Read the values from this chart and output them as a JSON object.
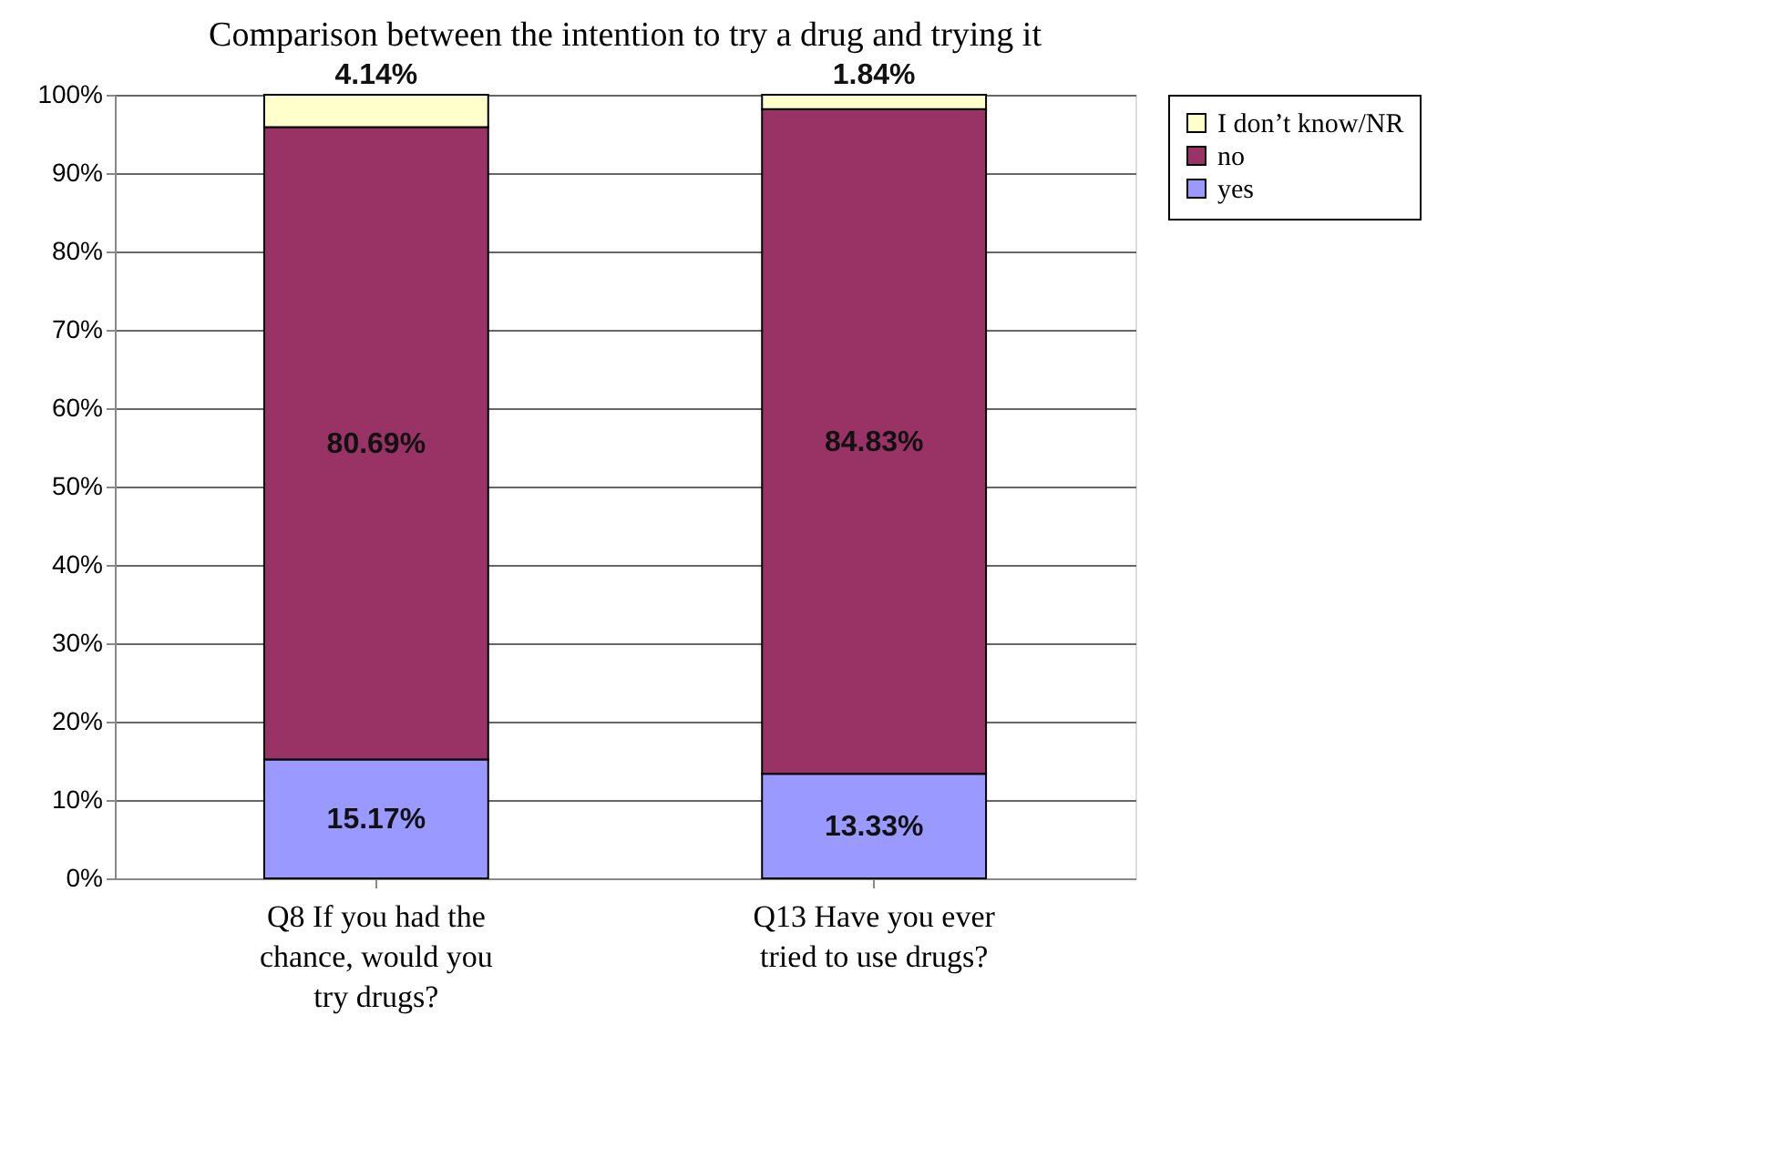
{
  "chart_data": {
    "type": "bar",
    "stacked": true,
    "title": "Comparison between the intention to try a drug and trying it",
    "categories": [
      "Q8 If you had the chance, would you try drugs?",
      "Q13 Have you ever tried to use drugs?"
    ],
    "series": [
      {
        "name": "yes",
        "color": "#9999ff",
        "values": [
          15.17,
          13.33
        ],
        "value_labels": [
          "15.17%",
          "13.33%"
        ]
      },
      {
        "name": "no",
        "color": "#993366",
        "values": [
          80.69,
          84.83
        ],
        "value_labels": [
          "80.69%",
          "84.83%"
        ]
      },
      {
        "name": "I don’t know/NR",
        "color": "#ffffcc",
        "values": [
          4.14,
          1.84
        ],
        "value_labels": [
          "4.14%",
          "1.84%"
        ]
      }
    ],
    "ylim": [
      0,
      100
    ],
    "yticks": [
      {
        "value": 0,
        "label": "0%"
      },
      {
        "value": 10,
        "label": "10%"
      },
      {
        "value": 20,
        "label": "20%"
      },
      {
        "value": 30,
        "label": "30%"
      },
      {
        "value": 40,
        "label": "40%"
      },
      {
        "value": 50,
        "label": "50%"
      },
      {
        "value": 60,
        "label": "60%"
      },
      {
        "value": 70,
        "label": "70%"
      },
      {
        "value": 80,
        "label": "80%"
      },
      {
        "value": 90,
        "label": "90%"
      },
      {
        "value": 100,
        "label": "100%"
      }
    ],
    "grid": "y",
    "legend": "right"
  }
}
